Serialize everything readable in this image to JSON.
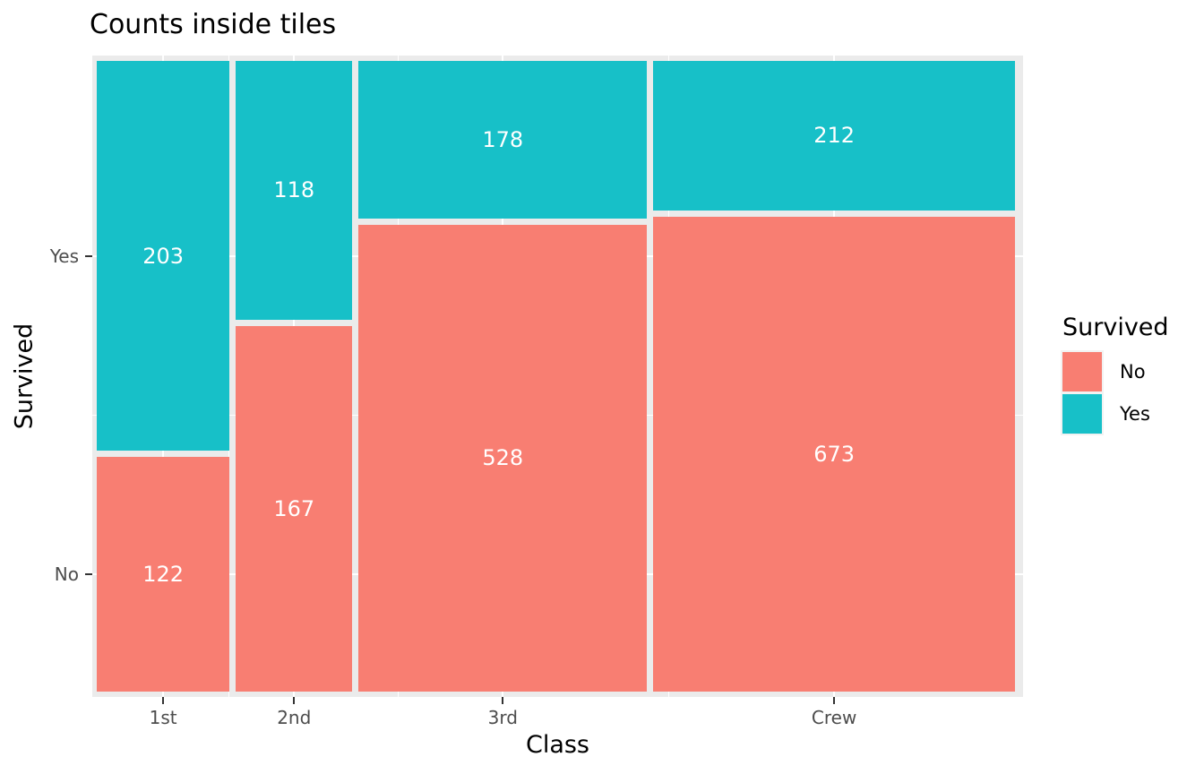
{
  "chart_data": {
    "type": "mosaic",
    "title": "Counts inside tiles",
    "xlabel": "Class",
    "ylabel": "Survived",
    "categories": [
      "1st",
      "2nd",
      "3rd",
      "Crew"
    ],
    "series": [
      {
        "name": "No",
        "color": "#F87E72",
        "values": [
          122,
          167,
          528,
          673
        ]
      },
      {
        "name": "Yes",
        "color": "#17C0C8",
        "values": [
          203,
          118,
          178,
          212
        ]
      }
    ],
    "stack_top_to_bottom": [
      "Yes",
      "No"
    ],
    "x_tick_labels": [
      "1st",
      "2nd",
      "3rd",
      "Crew"
    ],
    "y_tick_labels": [
      "Yes",
      "No"
    ],
    "labels_inside_tiles": true,
    "legend": {
      "title": "Survived",
      "position": "right",
      "entries": [
        "No",
        "Yes"
      ]
    },
    "colors": {
      "panel_background": "#EBEBEB",
      "grid": "#FFFFFF",
      "tick_label": "#4D4D4D",
      "tick_mark": "#333333",
      "text": "#000000",
      "tile_label": "#FFFFFF",
      "figure_background": "#FFFFFF"
    },
    "grid": "on",
    "axis_ranges": {
      "x": "product scale (class share of 2201)",
      "y": "proportion surviving within class"
    }
  }
}
